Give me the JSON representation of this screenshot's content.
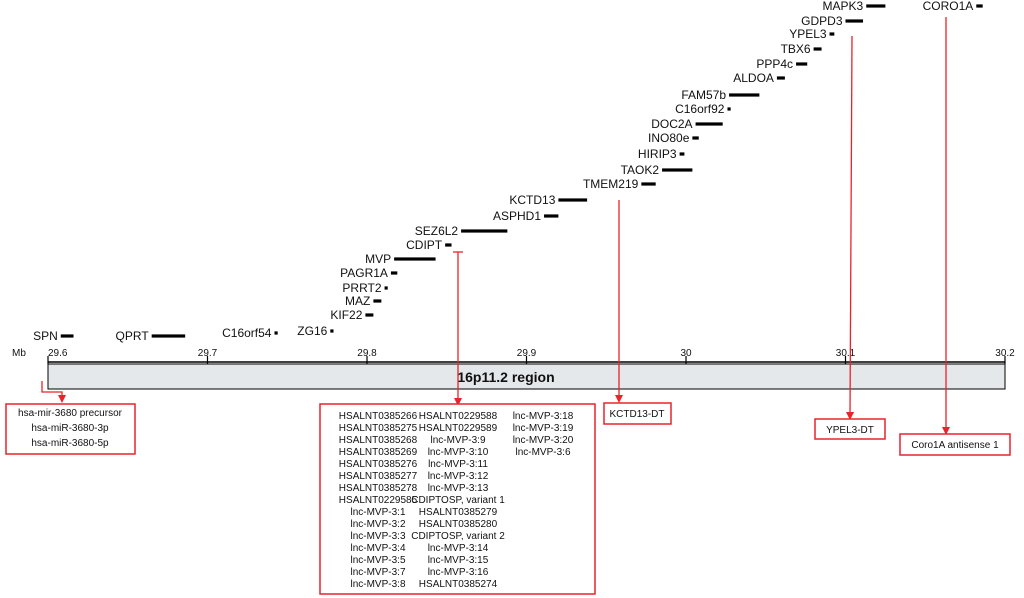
{
  "axis": {
    "unit_label": "Mb",
    "ticks": [
      "29.6",
      "29.7",
      "29.8",
      "29.9",
      "30",
      "30.1",
      "30.2"
    ]
  },
  "region": {
    "label": "16p11.2 region"
  },
  "genes": [
    {
      "name": "SPN",
      "start": 29.608,
      "end": 29.616
    },
    {
      "name": "QPRT",
      "start": 29.665,
      "end": 29.686
    },
    {
      "name": "C16orf54",
      "start": 29.742,
      "end": 29.744
    },
    {
      "name": "ZG16",
      "start": 29.777,
      "end": 29.779
    },
    {
      "name": "KIF22",
      "start": 29.799,
      "end": 29.804
    },
    {
      "name": "MAZ",
      "start": 29.804,
      "end": 29.809
    },
    {
      "name": "PRRT2",
      "start": 29.811,
      "end": 29.813
    },
    {
      "name": "PAGR1A",
      "start": 29.815,
      "end": 29.819
    },
    {
      "name": "MVP",
      "start": 29.817,
      "end": 29.843
    },
    {
      "name": "CDIPT",
      "start": 29.849,
      "end": 29.853
    },
    {
      "name": "SEZ6L2",
      "start": 29.859,
      "end": 29.888
    },
    {
      "name": "ASPHD1",
      "start": 29.911,
      "end": 29.92
    },
    {
      "name": "KCTD13",
      "start": 29.92,
      "end": 29.938
    },
    {
      "name": "TMEM219",
      "start": 29.972,
      "end": 29.981
    },
    {
      "name": "TAOK2",
      "start": 29.985,
      "end": 30.004
    },
    {
      "name": "HIRIP3",
      "start": 29.996,
      "end": 29.999
    },
    {
      "name": "INO80e",
      "start": 30.004,
      "end": 30.008
    },
    {
      "name": "DOC2A",
      "start": 30.006,
      "end": 30.023
    },
    {
      "name": "C16orf92",
      "start": 30.026,
      "end": 30.028
    },
    {
      "name": "FAM57b",
      "start": 30.027,
      "end": 30.046
    },
    {
      "name": "ALDOA",
      "start": 30.057,
      "end": 30.062
    },
    {
      "name": "PPP4c",
      "start": 30.069,
      "end": 30.076
    },
    {
      "name": "TBX6",
      "start": 30.08,
      "end": 30.085
    },
    {
      "name": "YPEL3",
      "start": 30.09,
      "end": 30.093
    },
    {
      "name": "GDPD3",
      "start": 30.1,
      "end": 30.111
    },
    {
      "name": "MAPK3",
      "start": 30.113,
      "end": 30.125
    },
    {
      "name": "CORO1A",
      "start": 30.182,
      "end": 30.186
    }
  ],
  "annotations": [
    {
      "name": "mir-3680",
      "lines": [
        "hsa-mir-3680 precursor",
        "hsa-miR-3680-3p",
        "hsa-miR-3680-5p"
      ]
    },
    {
      "name": "cdipt-lncrna",
      "columns": [
        [
          "HSALNT0385266",
          "HSALNT0385275",
          "HSALNT0385268",
          "HSALNT0385269",
          "HSALNT0385276",
          "HSALNT0385277",
          "HSALNT0385278",
          "HSALNT0229585",
          "lnc-MVP-3:1",
          "lnc-MVP-3:2",
          "lnc-MVP-3:3",
          "lnc-MVP-3:4",
          "lnc-MVP-3:5",
          "lnc-MVP-3:7",
          "lnc-MVP-3:8"
        ],
        [
          "HSALNT0229588",
          "HSALNT0229589",
          "lnc-MVP-3:9",
          "lnc-MVP-3:10",
          "lnc-MVP-3:11",
          "lnc-MVP-3:12",
          "lnc-MVP-3:13",
          "CDIPTOSP, variant 1",
          "HSALNT0385279",
          "HSALNT0385280",
          "CDIPTOSP, variant 2",
          "lnc-MVP-3:14",
          "lnc-MVP-3:15",
          "lnc-MVP-3:16",
          "HSALNT0385274"
        ],
        [
          "lnc-MVP-3:18",
          "lnc-MVP-3:19",
          "lnc-MVP-3:20",
          "lnc-MVP-3:6"
        ]
      ]
    },
    {
      "name": "kctd13-dt",
      "lines": [
        "KCTD13-DT"
      ]
    },
    {
      "name": "ypel3-dt",
      "lines": [
        "YPEL3-DT"
      ]
    },
    {
      "name": "coro1a-as1",
      "lines": [
        "Coro1A antisense 1"
      ]
    }
  ],
  "colors": {
    "arrow": "#e8232a",
    "region_fill": "#e4e8ea",
    "gene_bar": "#000000",
    "box_border": "#e8232a"
  }
}
